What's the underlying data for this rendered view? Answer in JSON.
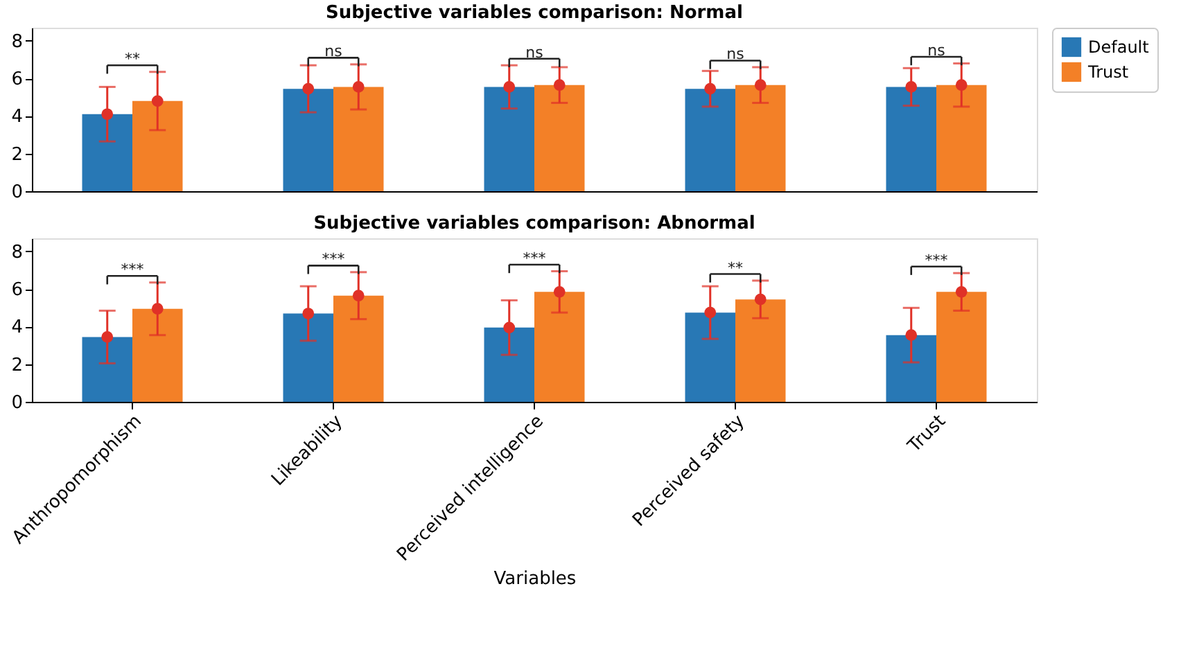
{
  "chart_data": [
    {
      "type": "bar",
      "title": "Subjective variables comparison: Normal",
      "categories": [
        "Anthropomorphism",
        "Likeability",
        "Perceived intelligence",
        "Perceived safety",
        "Trust"
      ],
      "series": [
        {
          "name": "Default",
          "color": "#2878b5",
          "values": [
            4.1,
            5.45,
            5.55,
            5.45,
            5.55
          ],
          "errors": [
            1.45,
            1.25,
            1.15,
            0.95,
            1.0
          ]
        },
        {
          "name": "Trust",
          "color": "#f38027",
          "values": [
            4.8,
            5.55,
            5.65,
            5.65,
            5.65
          ],
          "errors": [
            1.55,
            1.2,
            0.95,
            0.95,
            1.15
          ]
        },
        {
          "type": "scatter",
          "color": "#e03127",
          "x": [
            "Anthropomorphism",
            "Likeability",
            "Perceived intelligence",
            "Perceived safety",
            "Trust"
          ],
          "values": [
            4.1,
            5.45,
            5.55,
            5.45,
            5.55
          ]
        },
        {
          "type": "scatter",
          "color": "#e03127",
          "x": [
            "Anthropomorphism",
            "Likeability",
            "Perceived intelligence",
            "Perceived safety",
            "Trust"
          ],
          "values": [
            4.8,
            5.55,
            5.65,
            5.65,
            5.65
          ]
        }
      ],
      "ylim": [
        0,
        8.7
      ],
      "yticks": [
        0,
        2,
        4,
        6,
        8
      ],
      "grid": false,
      "legend": "right",
      "marker": "circle",
      "tick_labels": "y",
      "annotations": [
        "**",
        "ns",
        "ns",
        "ns",
        "ns"
      ]
    },
    {
      "type": "bar",
      "title": "Subjective variables comparison: Abnormal",
      "xlabel": "Variables",
      "categories": [
        "Anthropomorphism",
        "Likeability",
        "Perceived intelligence",
        "Perceived safety",
        "Trust"
      ],
      "series": [
        {
          "name": "Default",
          "color": "#2878b5",
          "values": [
            3.45,
            4.7,
            3.95,
            4.75,
            3.55
          ],
          "errors": [
            1.4,
            1.45,
            1.45,
            1.4,
            1.45
          ]
        },
        {
          "name": "Trust",
          "color": "#f38027",
          "values": [
            4.95,
            5.65,
            5.85,
            5.45,
            5.85
          ],
          "errors": [
            1.4,
            1.25,
            1.1,
            1.0,
            1.0
          ]
        },
        {
          "type": "scatter",
          "color": "#e03127",
          "x": [
            "Anthropomorphism",
            "Likeability",
            "Perceived intelligence",
            "Perceived safety",
            "Trust"
          ],
          "values": [
            3.45,
            4.7,
            3.95,
            4.75,
            3.55
          ]
        },
        {
          "type": "scatter",
          "color": "#e03127",
          "x": [
            "Anthropomorphism",
            "Likeability",
            "Perceived intelligence",
            "Perceived safety",
            "Trust"
          ],
          "values": [
            4.95,
            5.65,
            5.85,
            5.45,
            5.85
          ]
        }
      ],
      "ylim": [
        0,
        8.7
      ],
      "yticks": [
        0,
        2,
        4,
        6,
        8
      ],
      "grid": false,
      "legend": "right",
      "marker": "circle",
      "annotations": [
        "***",
        "***",
        "***",
        "**",
        "***"
      ]
    }
  ]
}
